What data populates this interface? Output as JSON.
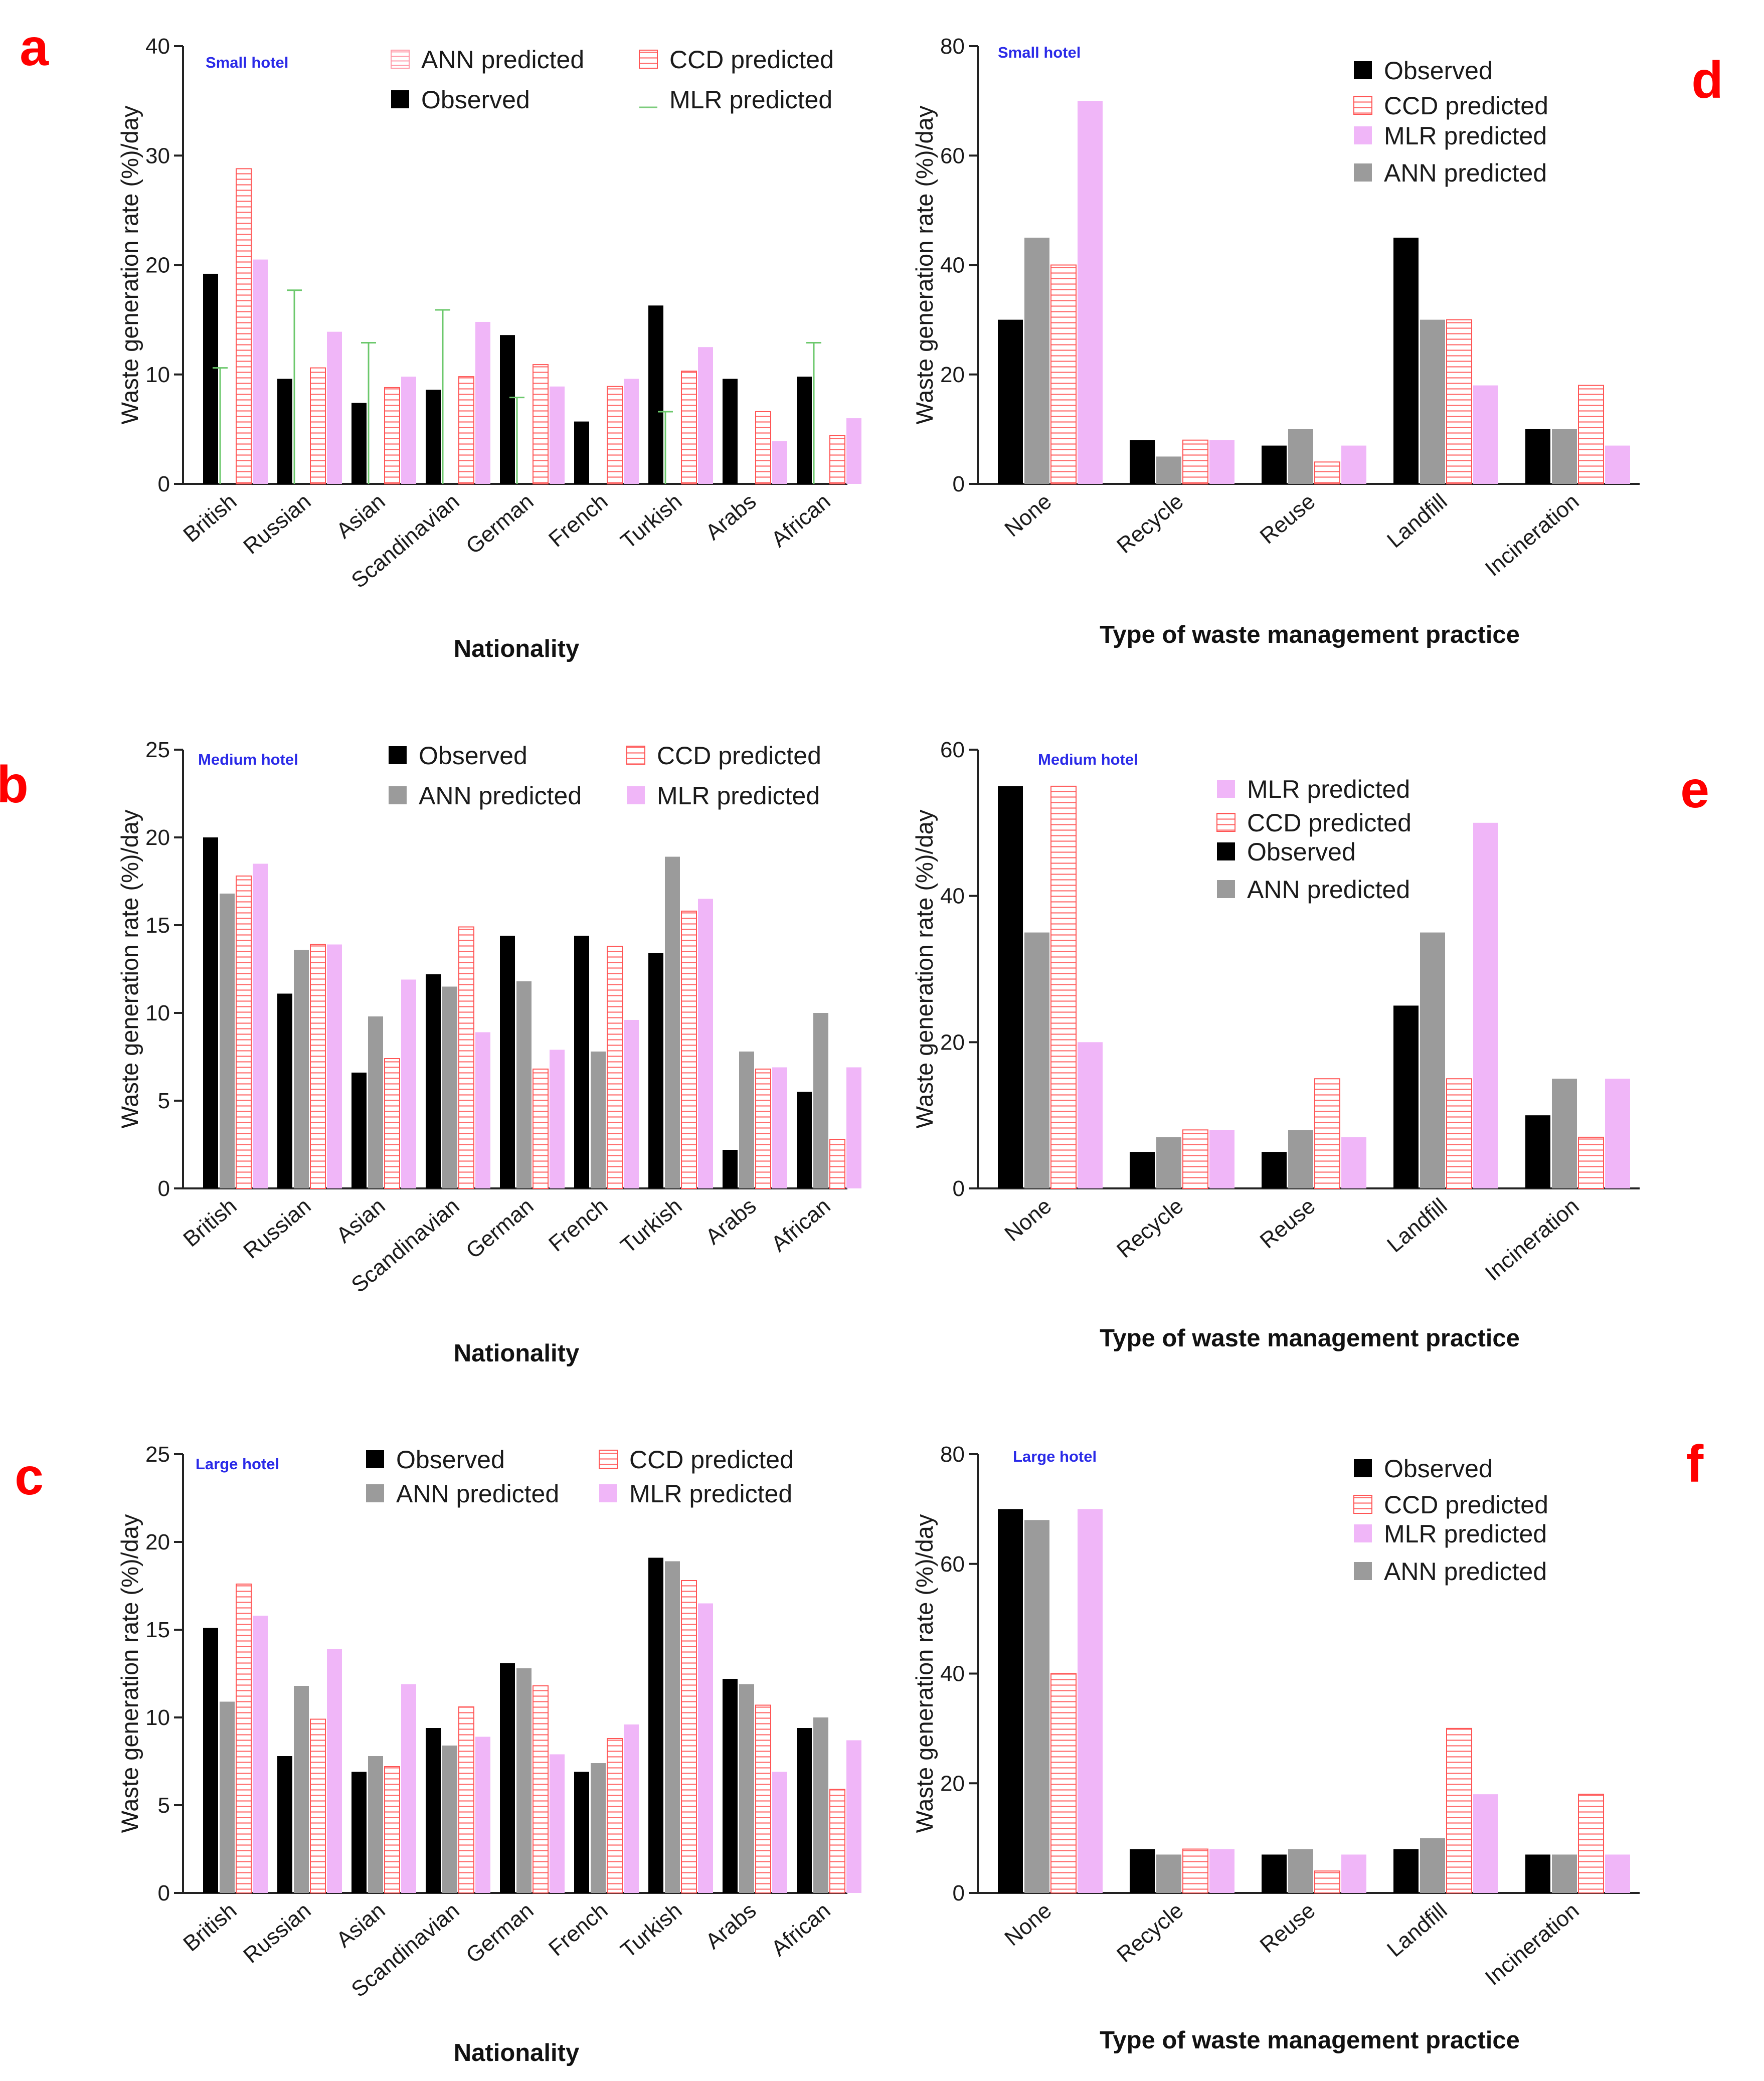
{
  "series_styles": {
    "Observed": {
      "fill": "#000000",
      "pattern": "solid"
    },
    "ANN predicted": {
      "fill": "#9b9b9b",
      "pattern": "solid"
    },
    "CCD predicted": {
      "fill": "#ffffff",
      "stroke": "#ff5555",
      "pattern": "hatch"
    },
    "MLR predicted": {
      "fill": "#f0b6f8",
      "pattern": "solid"
    }
  },
  "chart_data": [
    {
      "panel": "a",
      "type": "bar",
      "hotel_label": "Small hotel",
      "xlabel": "Nationality",
      "ylabel": "Waste generation rate (%)/day",
      "ylim": [
        0,
        40
      ],
      "yticks": [
        0,
        10,
        20,
        30,
        40
      ],
      "categories": [
        "British",
        "Russian",
        "Asian",
        "Scandinavian",
        "German",
        "French",
        "Turkish",
        "Arabs",
        "African"
      ],
      "legend": [
        [
          "ANN predicted",
          "CCD predicted"
        ],
        [
          "Observed",
          "MLR predicted"
        ]
      ],
      "legend_swatch": {
        "ANN predicted": "hatch-pink",
        "MLR predicted": "green-line"
      },
      "series": [
        {
          "name": "Observed",
          "values": [
            19.2,
            9.6,
            7.4,
            8.6,
            13.6,
            5.7,
            16.3,
            9.6,
            9.8
          ]
        },
        {
          "name": "ANN predicted",
          "values": [
            10.6,
            17.7,
            12.9,
            15.9,
            7.9,
            0,
            6.6,
            0,
            12.9
          ],
          "render": "green-line"
        },
        {
          "name": "CCD predicted",
          "values": [
            28.8,
            10.6,
            8.8,
            9.8,
            10.9,
            8.9,
            10.3,
            6.6,
            4.4
          ]
        },
        {
          "name": "MLR predicted",
          "values": [
            20.5,
            13.9,
            9.8,
            14.8,
            8.9,
            9.6,
            12.5,
            3.9,
            6.0
          ]
        }
      ]
    },
    {
      "panel": "b",
      "type": "bar",
      "hotel_label": "Medium hotel",
      "xlabel": "Nationality",
      "ylabel": "Waste generation rate (%)/day",
      "ylim": [
        0,
        25
      ],
      "yticks": [
        0,
        5,
        10,
        15,
        20,
        25
      ],
      "categories": [
        "British",
        "Russian",
        "Asian",
        "Scandinavian",
        "German",
        "French",
        "Turkish",
        "Arabs",
        "African"
      ],
      "legend": [
        [
          "Observed",
          "CCD predicted"
        ],
        [
          "ANN predicted",
          "MLR predicted"
        ]
      ],
      "series": [
        {
          "name": "Observed",
          "values": [
            20.0,
            11.1,
            6.6,
            12.2,
            14.4,
            14.4,
            13.4,
            2.2,
            5.5
          ]
        },
        {
          "name": "ANN predicted",
          "values": [
            16.8,
            13.6,
            9.8,
            11.5,
            11.8,
            7.8,
            18.9,
            7.8,
            10.0
          ]
        },
        {
          "name": "CCD predicted",
          "values": [
            17.8,
            13.9,
            7.4,
            14.9,
            6.8,
            13.8,
            15.8,
            6.8,
            2.8
          ]
        },
        {
          "name": "MLR predicted",
          "values": [
            18.5,
            13.9,
            11.9,
            8.9,
            7.9,
            9.6,
            16.5,
            6.9,
            6.9
          ]
        }
      ]
    },
    {
      "panel": "c",
      "type": "bar",
      "hotel_label": "Large hotel",
      "xlabel": "Nationality",
      "ylabel": "Waste generation rate (%)/day",
      "ylim": [
        0,
        25
      ],
      "yticks": [
        0,
        5,
        10,
        15,
        20,
        25
      ],
      "categories": [
        "British",
        "Russian",
        "Asian",
        "Scandinavian",
        "German",
        "French",
        "Turkish",
        "Arabs",
        "African"
      ],
      "legend": [
        [
          "Observed",
          "CCD predicted"
        ],
        [
          "ANN predicted",
          "MLR predicted"
        ]
      ],
      "series": [
        {
          "name": "Observed",
          "values": [
            15.1,
            7.8,
            6.9,
            9.4,
            13.1,
            6.9,
            19.1,
            12.2,
            9.4
          ]
        },
        {
          "name": "ANN predicted",
          "values": [
            10.9,
            11.8,
            7.8,
            8.4,
            12.8,
            7.4,
            18.9,
            11.9,
            10.0
          ]
        },
        {
          "name": "CCD predicted",
          "values": [
            17.6,
            9.9,
            7.2,
            10.6,
            11.8,
            8.8,
            17.8,
            10.7,
            5.9
          ]
        },
        {
          "name": "MLR predicted",
          "values": [
            15.8,
            13.9,
            11.9,
            8.9,
            7.9,
            9.6,
            16.5,
            6.9,
            8.7
          ]
        }
      ]
    },
    {
      "panel": "d",
      "type": "bar",
      "hotel_label": "Small hotel",
      "xlabel": "Type of waste management practice",
      "ylabel": "Waste generation rate (%)/day",
      "ylim": [
        0,
        80
      ],
      "yticks": [
        0,
        20,
        40,
        60,
        80
      ],
      "categories": [
        "None",
        "Recycle",
        "Reuse",
        "Landfill",
        "Incineration"
      ],
      "legend": [
        [
          "Observed"
        ],
        [
          "CCD predicted"
        ],
        [
          "MLR predicted"
        ],
        [
          "ANN predicted"
        ]
      ],
      "series": [
        {
          "name": "Observed",
          "values": [
            30,
            8,
            7,
            45,
            10
          ]
        },
        {
          "name": "ANN predicted",
          "values": [
            45,
            5,
            10,
            30,
            10
          ]
        },
        {
          "name": "CCD predicted",
          "values": [
            40,
            8,
            4,
            30,
            18
          ]
        },
        {
          "name": "MLR predicted",
          "values": [
            70,
            8,
            7,
            18,
            7
          ]
        }
      ]
    },
    {
      "panel": "e",
      "type": "bar",
      "hotel_label": "Medium hotel",
      "xlabel": "Type of waste management practice",
      "ylabel": "Waste generation rate (%)/day",
      "ylim": [
        0,
        60
      ],
      "yticks": [
        0,
        20,
        40,
        60
      ],
      "categories": [
        "None",
        "Recycle",
        "Reuse",
        "Landfill",
        "Incineration"
      ],
      "legend": [
        [
          "MLR predicted"
        ],
        [
          "CCD predicted"
        ],
        [
          "Observed"
        ],
        [
          "ANN predicted"
        ]
      ],
      "series": [
        {
          "name": "Observed",
          "values": [
            55,
            5,
            5,
            25,
            10
          ]
        },
        {
          "name": "ANN predicted",
          "values": [
            35,
            7,
            8,
            35,
            15
          ]
        },
        {
          "name": "CCD predicted",
          "values": [
            55,
            8,
            15,
            15,
            7
          ]
        },
        {
          "name": "MLR predicted",
          "values": [
            20,
            8,
            7,
            50,
            15
          ]
        }
      ]
    },
    {
      "panel": "f",
      "type": "bar",
      "hotel_label": "Large hotel",
      "xlabel": "Type of waste management practice",
      "ylabel": "Waste generation rate (%)/day",
      "ylim": [
        0,
        80
      ],
      "yticks": [
        0,
        20,
        40,
        60,
        80
      ],
      "categories": [
        "None",
        "Recycle",
        "Reuse",
        "Landfill",
        "Incineration"
      ],
      "legend": [
        [
          "Observed"
        ],
        [
          "CCD predicted"
        ],
        [
          "MLR predicted"
        ],
        [
          "ANN predicted"
        ]
      ],
      "series": [
        {
          "name": "Observed",
          "values": [
            70,
            8,
            7,
            8,
            7
          ]
        },
        {
          "name": "ANN predicted",
          "values": [
            68,
            7,
            8,
            10,
            7
          ]
        },
        {
          "name": "CCD predicted",
          "values": [
            40,
            8,
            4,
            30,
            18
          ]
        },
        {
          "name": "MLR predicted",
          "values": [
            70,
            8,
            7,
            18,
            7
          ]
        }
      ]
    }
  ]
}
